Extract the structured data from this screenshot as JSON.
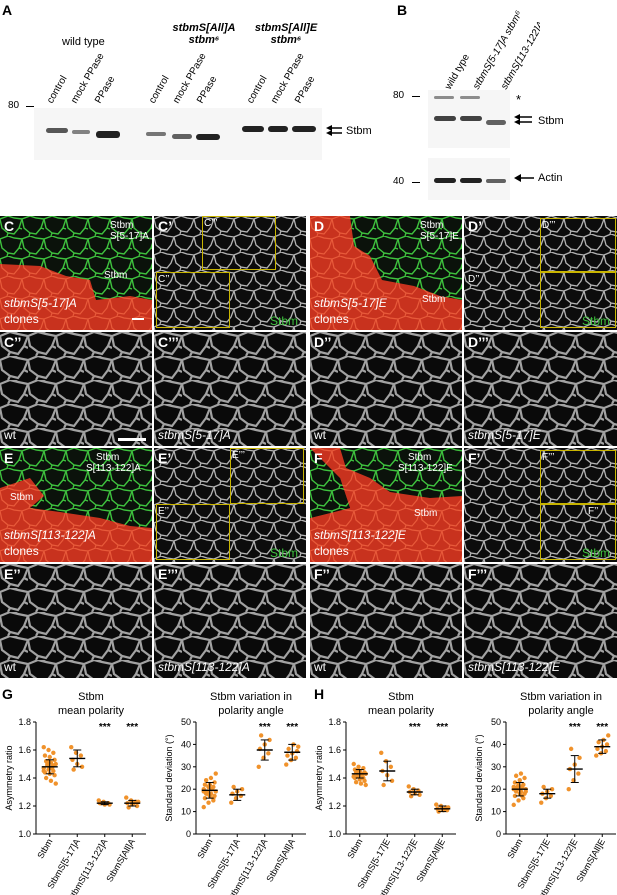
{
  "panel_A": {
    "letter": "A",
    "groups": [
      {
        "line1": "wild type",
        "line2": ""
      },
      {
        "line1": "stbmS[All]A",
        "line2": "stbm⁶"
      },
      {
        "line1": "stbmS[All]E",
        "line2": "stbm⁶"
      }
    ],
    "lanes": [
      "control",
      "mock PPase",
      "PPase",
      "control",
      "mock PPase",
      "PPase",
      "control",
      "mock PPase",
      "PPase"
    ],
    "marker": "80",
    "band_label": "Stbm"
  },
  "panel_B": {
    "letter": "B",
    "lanes": [
      "wild type",
      "stbmS[5-17]A stbm⁶",
      "stbmS[113-122]A stbm⁶"
    ],
    "marker_top": "80",
    "marker_bottom": "40",
    "asterisk": "*",
    "band_label": "Stbm",
    "actin_label": "Actin"
  },
  "micrographs": {
    "C": {
      "letter": "C",
      "green_label": "Stbm",
      "green_label2": "S[5-17]A",
      "red_label": "Stbm",
      "clone_name": "stbmS[5-17]A",
      "clone_word": "clones"
    },
    "Cp": {
      "letter": "C’",
      "inset_a": "C’’’",
      "inset_b": "C’’",
      "channel": "Stbm"
    },
    "Cpp": {
      "letter": "C’’",
      "label": "wt"
    },
    "Cppp": {
      "letter": "C’’’",
      "label": "stbmS[5-17]A"
    },
    "D": {
      "letter": "D",
      "green_label": "Stbm",
      "green_label2": "S[5-17]E",
      "red_label": "Stbm",
      "clone_name": "stbmS[5-17]E",
      "clone_word": "clones"
    },
    "Dp": {
      "letter": "D’",
      "inset_a": "D’’’",
      "inset_b": "D’’",
      "channel": "Stbm"
    },
    "Dpp": {
      "letter": "D’’",
      "label": "wt"
    },
    "Dppp": {
      "letter": "D’’’",
      "label": "stbmS[5-17]E"
    },
    "E": {
      "letter": "E",
      "green_label": "Stbm",
      "green_label2": "S[113-122]A",
      "red_label": "Stbm",
      "clone_name": "stbmS[113-122]A",
      "clone_word": "clones"
    },
    "Ep": {
      "letter": "E’",
      "inset_a": "E’’’",
      "inset_b": "E’’",
      "channel": "Stbm"
    },
    "Epp": {
      "letter": "E’’",
      "label": "wt"
    },
    "Eppp": {
      "letter": "E’’’",
      "label": "stbmS[113-122]A"
    },
    "F": {
      "letter": "F",
      "green_label": "Stbm",
      "green_label2": "S[113-122]E",
      "red_label": "Stbm",
      "clone_name": "stbmS[113-122]E",
      "clone_word": "clones"
    },
    "Fp": {
      "letter": "F’",
      "inset_a": "F’’’",
      "inset_b": "F’’",
      "channel": "Stbm"
    },
    "Fpp": {
      "letter": "F’’",
      "label": "wt"
    },
    "Fppp": {
      "letter": "F’’’",
      "label": "stbmS[113-122]E"
    }
  },
  "panel_G": {
    "letter": "G"
  },
  "panel_H": {
    "letter": "H"
  },
  "colors": {
    "point": "#f0922b",
    "inset_border": "#c8b400",
    "green": "#3ec23e",
    "red_clone": "#c8321e"
  },
  "chart_data": [
    {
      "type": "scatter",
      "panel": "G",
      "title": "Stbm mean polarity",
      "ylabel": "Asymmetry ratio",
      "ylim": [
        1.0,
        1.8
      ],
      "yticks": [
        "1.0",
        "1.2",
        "1.4",
        "1.6",
        "1.8"
      ],
      "categories": [
        "Stbm",
        "StbmS[5-17]A",
        "StbmS[113-122]A",
        "StbmS[All]A"
      ],
      "means": [
        1.48,
        1.54,
        1.22,
        1.22
      ],
      "sd_low": [
        1.43,
        1.48,
        1.21,
        1.2
      ],
      "sd_high": [
        1.53,
        1.6,
        1.23,
        1.24
      ],
      "significance": [
        "",
        "",
        "***",
        "***"
      ],
      "points": [
        [
          1.62,
          1.6,
          1.58,
          1.56,
          1.55,
          1.53,
          1.52,
          1.51,
          1.5,
          1.49,
          1.48,
          1.47,
          1.46,
          1.45,
          1.44,
          1.43,
          1.42,
          1.4,
          1.38,
          1.36,
          1.5,
          1.47,
          1.45,
          1.52,
          1.49
        ],
        [
          1.62,
          1.58,
          1.56,
          1.53,
          1.5,
          1.48,
          1.46
        ],
        [
          1.24,
          1.23,
          1.22,
          1.22,
          1.21,
          1.21,
          1.22
        ],
        [
          1.26,
          1.24,
          1.23,
          1.22,
          1.21,
          1.2,
          1.19,
          1.22,
          1.23
        ]
      ]
    },
    {
      "type": "scatter",
      "panel": "G",
      "title": "Stbm variation in polarity angle",
      "ylabel": "Standard deviation (°)",
      "ylim": [
        0,
        50
      ],
      "yticks": [
        "0",
        "10",
        "20",
        "30",
        "40",
        "50"
      ],
      "categories": [
        "Stbm",
        "StbmS[5-17]A",
        "StbmS[113-122]A",
        "StbmS[All]A"
      ],
      "means": [
        19.5,
        17.5,
        37.5,
        36.5
      ],
      "sd_low": [
        16,
        15,
        33,
        33
      ],
      "sd_high": [
        23,
        20,
        42,
        40
      ],
      "significance": [
        "",
        "",
        "***",
        "***"
      ],
      "points": [
        [
          12,
          14,
          15,
          16,
          17,
          17,
          18,
          18,
          19,
          19,
          20,
          20,
          21,
          21,
          22,
          22,
          23,
          24,
          25,
          27,
          18,
          20,
          19,
          21,
          16
        ],
        [
          14,
          16,
          17,
          18,
          19,
          20,
          21
        ],
        [
          30,
          34,
          36,
          38,
          40,
          42,
          44
        ],
        [
          31,
          33,
          34,
          35,
          36,
          37,
          38,
          40,
          39
        ]
      ]
    },
    {
      "type": "scatter",
      "panel": "H",
      "title": "Stbm mean polarity",
      "ylabel": "Asymmetry ratio",
      "ylim": [
        1.0,
        1.8
      ],
      "yticks": [
        "1.0",
        "1.2",
        "1.4",
        "1.6",
        "1.8"
      ],
      "categories": [
        "Stbm",
        "StbmS[5-17]E",
        "StbmS[113-122]E",
        "StbmS[All]E"
      ],
      "means": [
        1.43,
        1.45,
        1.3,
        1.18
      ],
      "sd_low": [
        1.4,
        1.38,
        1.28,
        1.16
      ],
      "sd_high": [
        1.46,
        1.52,
        1.32,
        1.2
      ],
      "significance": [
        "",
        "",
        "***",
        "***"
      ],
      "points": [
        [
          1.5,
          1.48,
          1.47,
          1.46,
          1.45,
          1.44,
          1.44,
          1.43,
          1.43,
          1.42,
          1.42,
          1.41,
          1.41,
          1.4,
          1.4,
          1.39,
          1.38,
          1.37,
          1.36,
          1.35,
          1.45,
          1.43,
          1.41
        ],
        [
          1.58,
          1.52,
          1.48,
          1.45,
          1.42,
          1.38,
          1.35
        ],
        [
          1.34,
          1.32,
          1.31,
          1.3,
          1.29,
          1.28,
          1.27
        ],
        [
          1.21,
          1.2,
          1.19,
          1.18,
          1.18,
          1.17,
          1.16,
          1.17,
          1.19
        ]
      ]
    },
    {
      "type": "scatter",
      "panel": "H",
      "title": "Stbm variation in polarity angle",
      "ylabel": "Standard deviation (°)",
      "ylim": [
        0,
        50
      ],
      "yticks": [
        "0",
        "10",
        "20",
        "30",
        "40",
        "50"
      ],
      "categories": [
        "Stbm",
        "StbmS[5-17]E",
        "StbmS[113-122]E",
        "StbmS[All]E"
      ],
      "means": [
        20,
        18,
        29,
        39
      ],
      "sd_low": [
        17,
        16,
        23,
        36
      ],
      "sd_high": [
        23,
        20,
        35,
        42
      ],
      "significance": [
        "",
        "",
        "***",
        "***"
      ],
      "points": [
        [
          13,
          15,
          16,
          17,
          18,
          18,
          19,
          19,
          20,
          20,
          21,
          21,
          22,
          22,
          23,
          24,
          25,
          26,
          27,
          19,
          21,
          17,
          20
        ],
        [
          14,
          16,
          17,
          18,
          19,
          20,
          21
        ],
        [
          20,
          24,
          27,
          29,
          31,
          34,
          38
        ],
        [
          35,
          36,
          37,
          38,
          39,
          40,
          41,
          42,
          44
        ]
      ]
    }
  ]
}
